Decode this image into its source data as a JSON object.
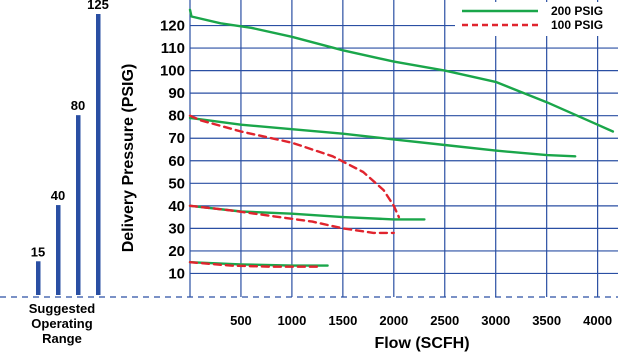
{
  "colors": {
    "grid": "#2a4fa3",
    "bar": "#2a4fa3",
    "series_200": "#1aa64a",
    "series_100": "#e0242e"
  },
  "operating_range": {
    "caption_lines": [
      "Suggested",
      "Operating",
      "Range"
    ],
    "bars": [
      {
        "label": "15",
        "value": 15
      },
      {
        "label": "40",
        "value": 40
      },
      {
        "label": "80",
        "value": 80
      },
      {
        "label": "125",
        "value": 125
      }
    ]
  },
  "chart_data": {
    "type": "line",
    "xlabel": "Flow (SCFH)",
    "ylabel": "Delivery Pressure (PSIG)",
    "xlim": [
      0,
      4200
    ],
    "ylim": [
      0,
      130
    ],
    "x_ticks": [
      500,
      1000,
      1500,
      2000,
      2500,
      3000,
      3500,
      4000
    ],
    "y_ticks": [
      10,
      20,
      30,
      40,
      50,
      60,
      70,
      80,
      90,
      100,
      110,
      120
    ],
    "grid": true,
    "legend_position": "top-right",
    "series": [
      {
        "name": "200 PSIG",
        "style": "solid",
        "curves": [
          [
            [
              0,
              127
            ],
            [
              15,
              124
            ],
            [
              300,
              121
            ],
            [
              600,
              119
            ],
            [
              1000,
              115
            ],
            [
              1500,
              109
            ],
            [
              2000,
              104
            ],
            [
              2500,
              100
            ],
            [
              3000,
              95
            ],
            [
              3500,
              86
            ],
            [
              4000,
              76
            ],
            [
              4150,
              73
            ]
          ],
          [
            [
              0,
              79
            ],
            [
              500,
              76
            ],
            [
              1000,
              74
            ],
            [
              1500,
              72
            ],
            [
              2000,
              69.5
            ],
            [
              2500,
              67
            ],
            [
              3000,
              64.5
            ],
            [
              3500,
              62.5
            ],
            [
              3780,
              62
            ]
          ],
          [
            [
              0,
              40
            ],
            [
              500,
              37.5
            ],
            [
              1000,
              36.5
            ],
            [
              1500,
              35
            ],
            [
              2000,
              34
            ],
            [
              2300,
              34
            ]
          ],
          [
            [
              0,
              15
            ],
            [
              500,
              14
            ],
            [
              1000,
              13.5
            ],
            [
              1350,
              13.5
            ]
          ]
        ]
      },
      {
        "name": "100 PSIG",
        "style": "dashed",
        "curves": [
          [
            [
              0,
              80
            ],
            [
              100,
              78
            ],
            [
              500,
              73
            ],
            [
              1000,
              68
            ],
            [
              1400,
              62
            ],
            [
              1700,
              55
            ],
            [
              1900,
              47
            ],
            [
              2000,
              40
            ],
            [
              2050,
              35
            ]
          ],
          [
            [
              0,
              40
            ],
            [
              400,
              38
            ],
            [
              800,
              35.5
            ],
            [
              1200,
              33
            ],
            [
              1500,
              30
            ],
            [
              1800,
              28
            ],
            [
              2000,
              28
            ]
          ],
          [
            [
              0,
              15
            ],
            [
              400,
              13.5
            ],
            [
              800,
              13
            ],
            [
              1100,
              13
            ],
            [
              1250,
              13
            ]
          ]
        ]
      }
    ]
  }
}
